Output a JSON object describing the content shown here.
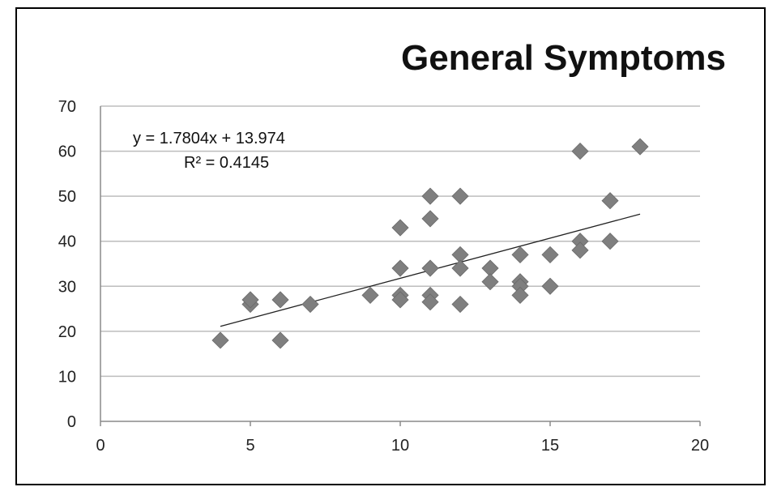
{
  "chart_data": {
    "type": "scatter",
    "title": "General Symptoms",
    "xlabel": "",
    "ylabel": "",
    "xlim": [
      0,
      20
    ],
    "ylim": [
      0,
      70
    ],
    "xticks": [
      0,
      5,
      10,
      15,
      20
    ],
    "yticks": [
      0,
      10,
      20,
      30,
      40,
      50,
      60,
      70
    ],
    "grid": "horizontal",
    "legend": "none",
    "marker_color": "#7f7f7f",
    "trendline": {
      "slope": 1.7804,
      "intercept": 13.974,
      "x_range": [
        4,
        18
      ],
      "equation_label": "y = 1.7804x + 13.974",
      "r2_label": "R² = 0.4145"
    },
    "points": [
      [
        4,
        18
      ],
      [
        5,
        26
      ],
      [
        5,
        27
      ],
      [
        6,
        27
      ],
      [
        6,
        18
      ],
      [
        7,
        26
      ],
      [
        9,
        28
      ],
      [
        10,
        43
      ],
      [
        10,
        34
      ],
      [
        10,
        28
      ],
      [
        10,
        27
      ],
      [
        11,
        50
      ],
      [
        11,
        45
      ],
      [
        11,
        34
      ],
      [
        11,
        28
      ],
      [
        11,
        26.5
      ],
      [
        12,
        50
      ],
      [
        12,
        37
      ],
      [
        12,
        34
      ],
      [
        12,
        26
      ],
      [
        13,
        34
      ],
      [
        13,
        31
      ],
      [
        14,
        37
      ],
      [
        14,
        31
      ],
      [
        14,
        30
      ],
      [
        14,
        28
      ],
      [
        15,
        37
      ],
      [
        15,
        30
      ],
      [
        16,
        60
      ],
      [
        16,
        40
      ],
      [
        16,
        38
      ],
      [
        17,
        49
      ],
      [
        17,
        40
      ],
      [
        18,
        61
      ]
    ]
  }
}
